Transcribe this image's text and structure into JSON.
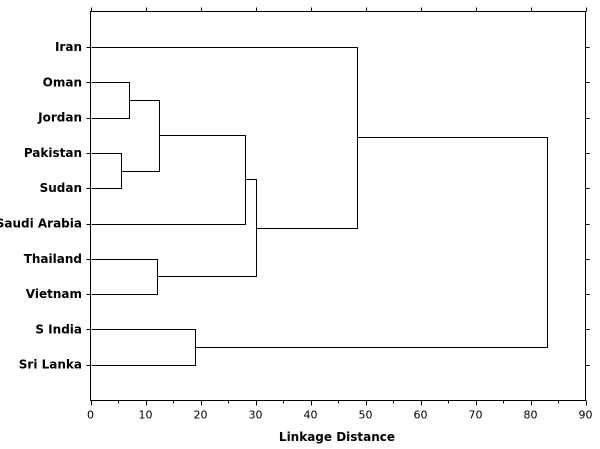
{
  "chart_data": {
    "type": "dendrogram",
    "xlabel": "Linkage Distance",
    "xlim": [
      0,
      90
    ],
    "x_ticks": [
      "0",
      "10",
      "20",
      "30",
      "40",
      "50",
      "60",
      "70",
      "80",
      "90"
    ],
    "leaves": [
      "Iran",
      "Oman",
      "Jordan",
      "Pakistan",
      "Sudan",
      "Saudi Arabia",
      "Thailand",
      "Vietnam",
      "S India",
      "Sri Lanka"
    ],
    "merges": [
      {
        "left": "Oman",
        "right": "Jordan",
        "distance": 7,
        "id": "c1"
      },
      {
        "left": "Pakistan",
        "right": "Sudan",
        "distance": 5.5,
        "id": "c2"
      },
      {
        "left": "c1",
        "right": "c2",
        "distance": 12.5,
        "id": "c3"
      },
      {
        "left": "c3",
        "right": "Saudi Arabia",
        "distance": 28,
        "id": "c4"
      },
      {
        "left": "Thailand",
        "right": "Vietnam",
        "distance": 12,
        "id": "c5"
      },
      {
        "left": "c4",
        "right": "c5",
        "distance": 30,
        "id": "c6"
      },
      {
        "left": "Iran",
        "right": "c6",
        "distance": 48.5,
        "id": "c7"
      },
      {
        "left": "S India",
        "right": "Sri Lanka",
        "distance": 19,
        "id": "c8"
      },
      {
        "left": "c7",
        "right": "c8",
        "distance": 83,
        "id": "c9"
      }
    ],
    "grid": false
  }
}
